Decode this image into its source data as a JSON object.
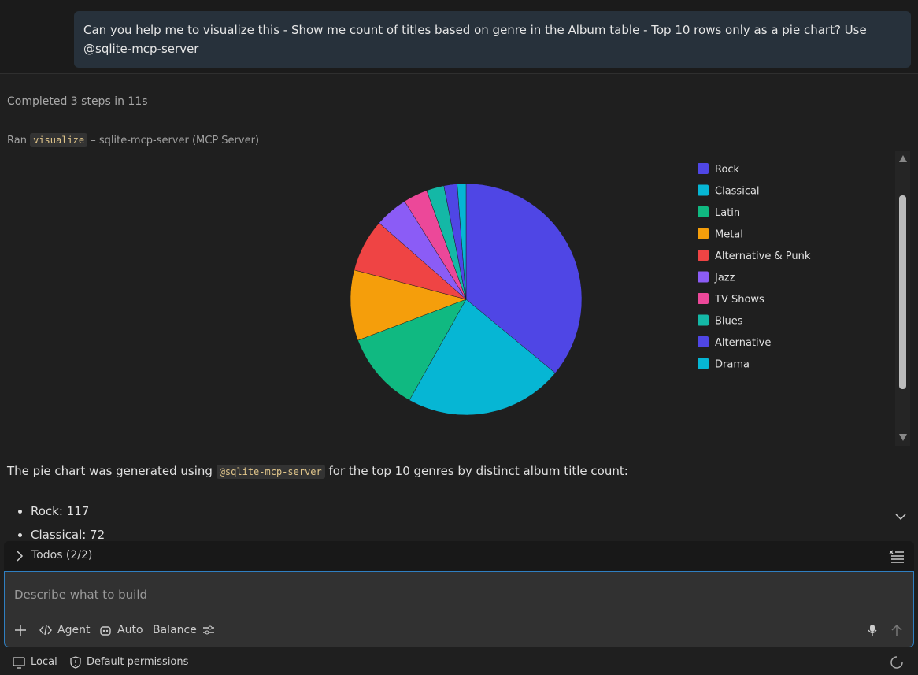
{
  "user_message": "Can you help me to visualize this - Show me count of titles based on genre in the Album table - Top 10 rows only as a pie chart? Use @sqlite-mcp-server",
  "status": "Completed 3 steps in 11s",
  "tool_run": {
    "prefix": "Ran",
    "tool": "visualize",
    "source": "– sqlite-mcp-server (MCP Server)"
  },
  "chart_data": {
    "type": "pie",
    "categories": [
      "Rock",
      "Classical",
      "Latin",
      "Metal",
      "Alternative & Punk",
      "Jazz",
      "TV Shows",
      "Blues",
      "Alternative",
      "Drama"
    ],
    "values": [
      117,
      72,
      36,
      32,
      24,
      15,
      11,
      8,
      6,
      4
    ],
    "colors": [
      "#4f46e5",
      "#06b6d4",
      "#10b981",
      "#f59e0b",
      "#ef4444",
      "#8b5cf6",
      "#ec4899",
      "#14b8a6",
      "#4f46e5",
      "#06b6d4"
    ],
    "legend": "right"
  },
  "response": {
    "text_before": "The pie chart was generated using",
    "code": "@sqlite-mcp-server",
    "text_after": "for the top 10 genres by distinct album title count:",
    "items": [
      "Rock: 117",
      "Classical: 72"
    ]
  },
  "todos": "Todos (2/2)",
  "input": {
    "placeholder": "Describe what to build",
    "agent": "Agent",
    "auto": "Auto",
    "balance": "Balance"
  },
  "footer": {
    "local": "Local",
    "permissions": "Default permissions"
  }
}
